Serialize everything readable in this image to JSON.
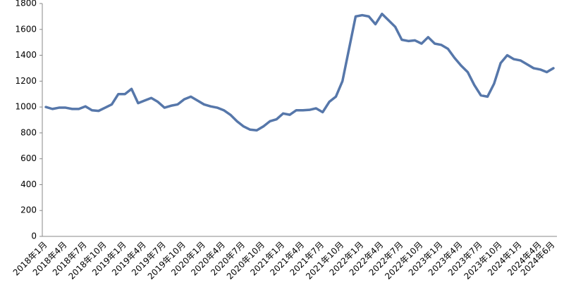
{
  "chart_data": {
    "type": "line",
    "categories": [
      "2018年1月",
      null,
      null,
      "2018年4月",
      null,
      null,
      "2018年7月",
      null,
      null,
      "2018年10月",
      null,
      null,
      "2019年1月",
      null,
      null,
      "2019年4月",
      null,
      null,
      "2019年7月",
      null,
      null,
      "2019年10月",
      null,
      null,
      "2020年1月",
      null,
      null,
      "2020年4月",
      null,
      null,
      "2020年7月",
      null,
      null,
      "2020年10月",
      null,
      null,
      "2021年1月",
      null,
      null,
      "2021年4月",
      null,
      null,
      "2021年7月",
      null,
      null,
      "2021年10月",
      null,
      null,
      "2022年1月",
      null,
      null,
      "2022年4月",
      null,
      null,
      "2022年7月",
      null,
      null,
      "2022年10月",
      null,
      null,
      "2023年1月",
      null,
      null,
      "2023年4月",
      null,
      null,
      "2023年7月",
      null,
      null,
      "2023年10月",
      null,
      null,
      "2024年1月",
      null,
      null,
      "2024年4月",
      null,
      "2024年6月"
    ],
    "values": [
      1000,
      985,
      995,
      995,
      985,
      985,
      1005,
      975,
      970,
      995,
      1020,
      1100,
      1100,
      1140,
      1030,
      1050,
      1070,
      1040,
      995,
      1010,
      1020,
      1060,
      1080,
      1050,
      1020,
      1005,
      995,
      975,
      940,
      890,
      850,
      825,
      820,
      850,
      890,
      905,
      950,
      940,
      975,
      975,
      978,
      990,
      960,
      1040,
      1080,
      1200,
      1450,
      1700,
      1710,
      1700,
      1640,
      1720,
      1670,
      1620,
      1520,
      1510,
      1515,
      1490,
      1540,
      1490,
      1480,
      1450,
      1380,
      1320,
      1270,
      1170,
      1090,
      1080,
      1180,
      1340,
      1400,
      1370,
      1360,
      1330,
      1300,
      1290,
      1270,
      1300
    ],
    "color": "#5677aa",
    "ylim": [
      0,
      1800
    ],
    "yticks": [
      0,
      200,
      400,
      600,
      800,
      1000,
      1200,
      1400,
      1600,
      1800
    ],
    "grid": false
  }
}
